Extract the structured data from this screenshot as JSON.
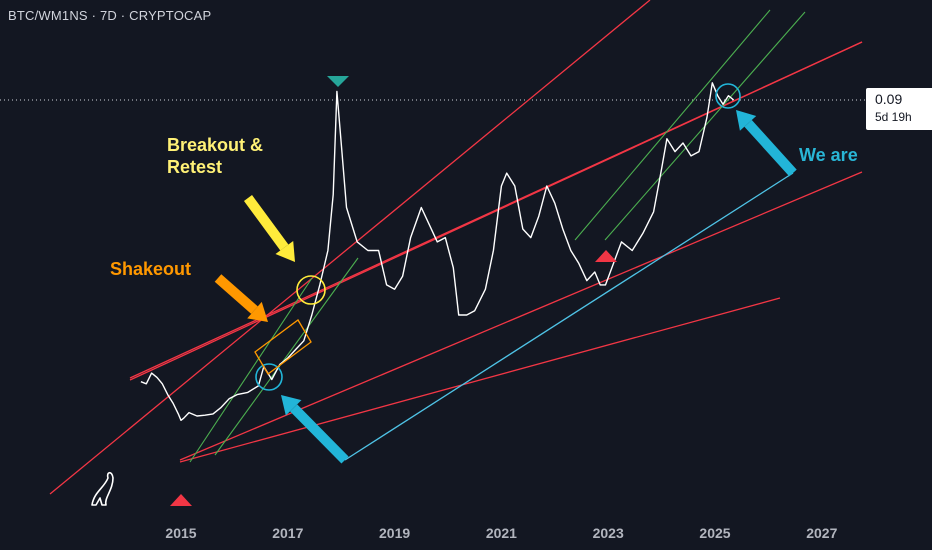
{
  "header": {
    "symbol_text": "BTC/WM1NS · 7D · CRYPTOCAP"
  },
  "price_label": {
    "value": "0.09",
    "countdown": "5d 19h"
  },
  "annotations": {
    "breakout": [
      "Breakout &",
      "Retest"
    ],
    "shakeout": "Shakeout",
    "we_are": "We are"
  },
  "colors": {
    "background": "#131722",
    "price_line": "#ffffff",
    "channel_red": "#f23645",
    "channel_green": "#4caf50",
    "trend_cyan": "#4fc3e6",
    "arrow_cyan": "#22b5d8",
    "arrow_orange": "#ff9800",
    "arrow_yellow": "#ffeb3b",
    "text_yellow": "#fff176",
    "text_orange": "#ff9800",
    "text_cyan": "#29b6d6"
  },
  "icons": [
    "dino-logo-icon",
    "triangle-down-icon",
    "triangle-up-icon",
    "arrow-icon",
    "circle-marker"
  ],
  "chart_data": {
    "type": "line",
    "x_ticks": [
      "2015",
      "2017",
      "2019",
      "2021",
      "2023",
      "2025",
      "2027"
    ],
    "xlim": [
      2013.6,
      2028.4
    ],
    "series": [
      {
        "points": [
          [
            2014.25,
            0.0245
          ],
          [
            2014.35,
            0.024
          ],
          [
            2014.45,
            0.0265
          ],
          [
            2014.55,
            0.0255
          ],
          [
            2014.65,
            0.024
          ],
          [
            2014.75,
            0.0215
          ],
          [
            2014.85,
            0.0195
          ],
          [
            2014.95,
            0.017
          ],
          [
            2015.0,
            0.0155
          ],
          [
            2015.05,
            0.016
          ],
          [
            2015.15,
            0.0173
          ],
          [
            2015.3,
            0.0165
          ],
          [
            2015.45,
            0.0167
          ],
          [
            2015.6,
            0.017
          ],
          [
            2015.75,
            0.0185
          ],
          [
            2015.9,
            0.0205
          ],
          [
            2016.05,
            0.0215
          ],
          [
            2016.25,
            0.022
          ],
          [
            2016.45,
            0.0235
          ],
          [
            2016.55,
            0.028
          ],
          [
            2016.7,
            0.025
          ],
          [
            2016.85,
            0.0285
          ],
          [
            2017.0,
            0.03
          ],
          [
            2017.15,
            0.032
          ],
          [
            2017.3,
            0.034
          ],
          [
            2017.45,
            0.04
          ],
          [
            2017.6,
            0.047
          ],
          [
            2017.75,
            0.055
          ],
          [
            2017.85,
            0.068
          ],
          [
            2017.92,
            0.092
          ],
          [
            2018.0,
            0.08
          ],
          [
            2018.1,
            0.065
          ],
          [
            2018.3,
            0.057
          ],
          [
            2018.5,
            0.055
          ],
          [
            2018.7,
            0.055
          ],
          [
            2018.85,
            0.047
          ],
          [
            2019.0,
            0.046
          ],
          [
            2019.15,
            0.049
          ],
          [
            2019.3,
            0.058
          ],
          [
            2019.5,
            0.065
          ],
          [
            2019.65,
            0.061
          ],
          [
            2019.8,
            0.057
          ],
          [
            2019.95,
            0.058
          ],
          [
            2020.1,
            0.051
          ],
          [
            2020.2,
            0.04
          ],
          [
            2020.35,
            0.04
          ],
          [
            2020.5,
            0.041
          ],
          [
            2020.7,
            0.046
          ],
          [
            2020.85,
            0.055
          ],
          [
            2021.0,
            0.07
          ],
          [
            2021.1,
            0.073
          ],
          [
            2021.25,
            0.07
          ],
          [
            2021.4,
            0.06
          ],
          [
            2021.55,
            0.058
          ],
          [
            2021.7,
            0.063
          ],
          [
            2021.85,
            0.07
          ],
          [
            2022.0,
            0.066
          ],
          [
            2022.15,
            0.06
          ],
          [
            2022.3,
            0.055
          ],
          [
            2022.45,
            0.052
          ],
          [
            2022.6,
            0.048
          ],
          [
            2022.75,
            0.05
          ],
          [
            2022.85,
            0.047
          ],
          [
            2022.95,
            0.047
          ],
          [
            2023.1,
            0.052
          ],
          [
            2023.25,
            0.057
          ],
          [
            2023.45,
            0.055
          ],
          [
            2023.65,
            0.059
          ],
          [
            2023.85,
            0.064
          ],
          [
            2024.0,
            0.074
          ],
          [
            2024.1,
            0.081
          ],
          [
            2024.25,
            0.078
          ],
          [
            2024.4,
            0.08
          ],
          [
            2024.55,
            0.077
          ],
          [
            2024.7,
            0.078
          ],
          [
            2024.85,
            0.086
          ],
          [
            2024.95,
            0.094
          ],
          [
            2025.05,
            0.091
          ],
          [
            2025.15,
            0.089
          ],
          [
            2025.25,
            0.091
          ],
          [
            2025.35,
            0.09
          ]
        ]
      }
    ]
  }
}
